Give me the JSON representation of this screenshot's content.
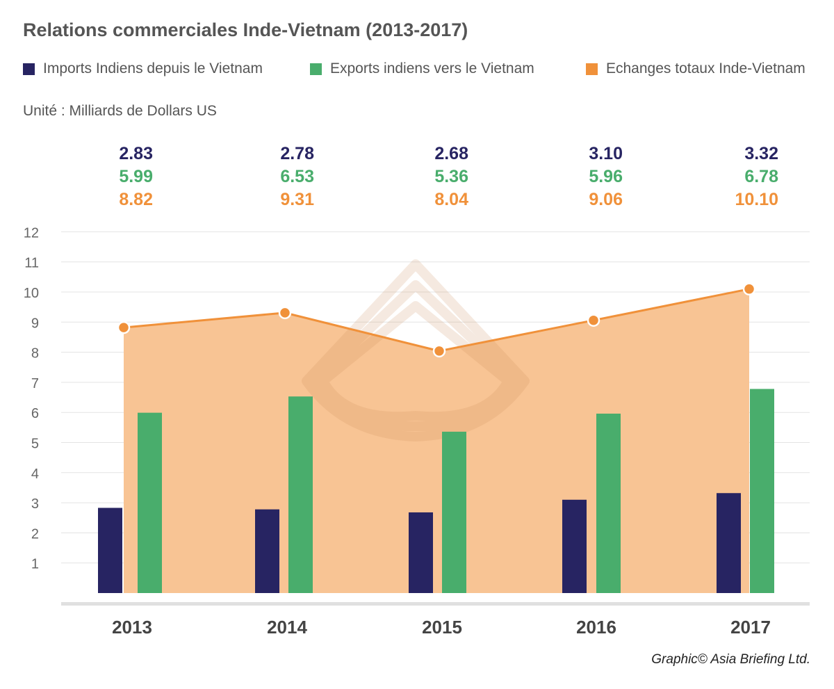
{
  "chart_data": {
    "type": "bar",
    "title": "Relations commerciales Inde-Vietnam (2013-2017)",
    "unit": "Unité : Milliards de Dollars US",
    "categories": [
      "2013",
      "2014",
      "2015",
      "2016",
      "2017"
    ],
    "series": [
      {
        "name": "Imports Indiens depuis le Vietnam",
        "type": "bar",
        "color": "#272462",
        "values": [
          2.83,
          2.78,
          2.68,
          3.1,
          3.32
        ],
        "labels": [
          "2.83",
          "2.78",
          "2.68",
          "3.10",
          "3.32"
        ]
      },
      {
        "name": "Exports indiens vers le Vietnam",
        "type": "bar",
        "color": "#49ad6c",
        "values": [
          5.99,
          6.53,
          5.36,
          5.96,
          6.78
        ],
        "labels": [
          "5.99",
          "6.53",
          "5.36",
          "5.96",
          "6.78"
        ]
      },
      {
        "name": "Echanges totaux Inde-Vietnam",
        "type": "area",
        "color": "#f0913a",
        "fill": "#f8c494",
        "values": [
          8.82,
          9.31,
          8.04,
          9.06,
          10.1
        ],
        "labels": [
          "8.82",
          "9.31",
          "8.04",
          "9.06",
          "10.10"
        ]
      }
    ],
    "yticks": [
      "1",
      "2",
      "3",
      "4",
      "5",
      "6",
      "7",
      "8",
      "9",
      "10",
      "11",
      "12"
    ],
    "ylim": [
      0,
      12
    ],
    "grid": true,
    "legend": "top"
  },
  "footer": {
    "credit": "Graphic© Asia Briefing Ltd."
  }
}
